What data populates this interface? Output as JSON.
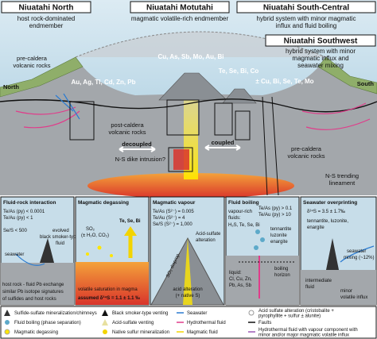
{
  "top": {
    "north": {
      "title": "Niuatahi North",
      "subtitle": [
        "host rock-dominated",
        "endmember"
      ]
    },
    "motutahi": {
      "title": "Niuatahi Motutahi",
      "subtitle": [
        "magmatic volatile-rich endmember"
      ]
    },
    "south_central": {
      "title": "Niuatahi South-Central",
      "subtitle": [
        "hybrid system with minor magmatic",
        "influx and fluid boiling"
      ]
    },
    "southwest": {
      "title": "Niuatahi Southwest",
      "subtitle": [
        "hybrid system with minor",
        "magmatic influx and",
        "seawater mixing"
      ]
    },
    "labels": {
      "pre_caldera_left": [
        "pre-caldera",
        "volcanic rocks"
      ],
      "north": "North",
      "south": "South",
      "motutahi_elements": "Cu, As, Sb, Mo, Au, Bi",
      "north_elements": "Au, Ag, Tl, Cd, Zn, Pb",
      "south_central_elements": "Te, Se, Bi, Co",
      "southwest_elements": "± Cu, Bi, Se, Te, Mo",
      "post_caldera": [
        "post-caldera",
        "volcanic rocks"
      ],
      "decoupled": "decoupled",
      "coupled": "coupled",
      "dike": "N-S dike intrusion?",
      "pre_caldera_right": [
        "pre-caldera",
        "volcanic rocks"
      ],
      "lineament": [
        "N-S trending",
        "lineament"
      ]
    }
  },
  "panels": [
    {
      "title": "Fluid-rock interaction",
      "texts": [
        "Te/As (py) < 0.0001",
        "Te/Au (py) < 1",
        "Se/S < 500",
        "seawater",
        "evolved",
        "black smoker-type",
        "fluid",
        "host rock - fluid Pb exchange",
        "similar Pb isotope signatures",
        "of sulfides and host rocks"
      ]
    },
    {
      "title": "Magmatic degassing",
      "texts": [
        "SO₂",
        "(± H₂O, CO₂)",
        "Te, Se, Bi",
        "volatile saturation in magma",
        "assumed δ³⁴S = 1.1 ± 1.1 ‰"
      ]
    },
    {
      "title": "Magmatic vapour",
      "texts": [
        "Te/As (S²⁻) = 0.005",
        "Te/Au (S²⁻) = 4",
        "Se/S (S²⁻) = 1,000",
        "Acid-sulfate",
        "alteration",
        "SO₂ disprop.",
        "acid alteration",
        "(+ native S)"
      ]
    },
    {
      "title": "Fluid boiling",
      "texts": [
        "vapour-rich",
        "fluids:",
        "H₂S, Te, Se, Bi",
        "Te/As (py) > 0.1",
        "Te/Au (py) > 10",
        "tennantite",
        "luzonite",
        "enargite",
        "boiling",
        "horizon",
        "liquid:",
        "Cl, Cu, Zn,",
        "Pb, As, Sb"
      ]
    },
    {
      "title": "Seawater overprinting",
      "texts": [
        "δ³⁴S = 3.5 ± 1.7‰",
        "tennantite, luzonite,",
        "enargite",
        "seawater",
        "mixing (~12%)",
        "intermediate",
        "fluid",
        "minor",
        "volatile influx"
      ]
    }
  ],
  "legend": [
    [
      "Sulfide-sulfate mineralization/chimneys"
    ],
    [
      "Fluid boiling (phase separation)"
    ],
    [
      "Magmatic degassing"
    ],
    [
      "Black smoker-type venting"
    ],
    [
      "Acid-sulfate venting"
    ],
    [
      "Native sulfur mineralization"
    ],
    [
      "Seawater"
    ],
    [
      "Hydrothermal fluid"
    ],
    [
      "Magmatic fluid"
    ],
    [
      "Acid sulfate alteration (cristobalite +",
      "pyrophyllite + sulfur ± alunite)"
    ],
    [
      "Faults"
    ],
    [
      "Hydrothermal fluid with vapour component with",
      "minor and/or major magmatic volatile influx"
    ]
  ]
}
